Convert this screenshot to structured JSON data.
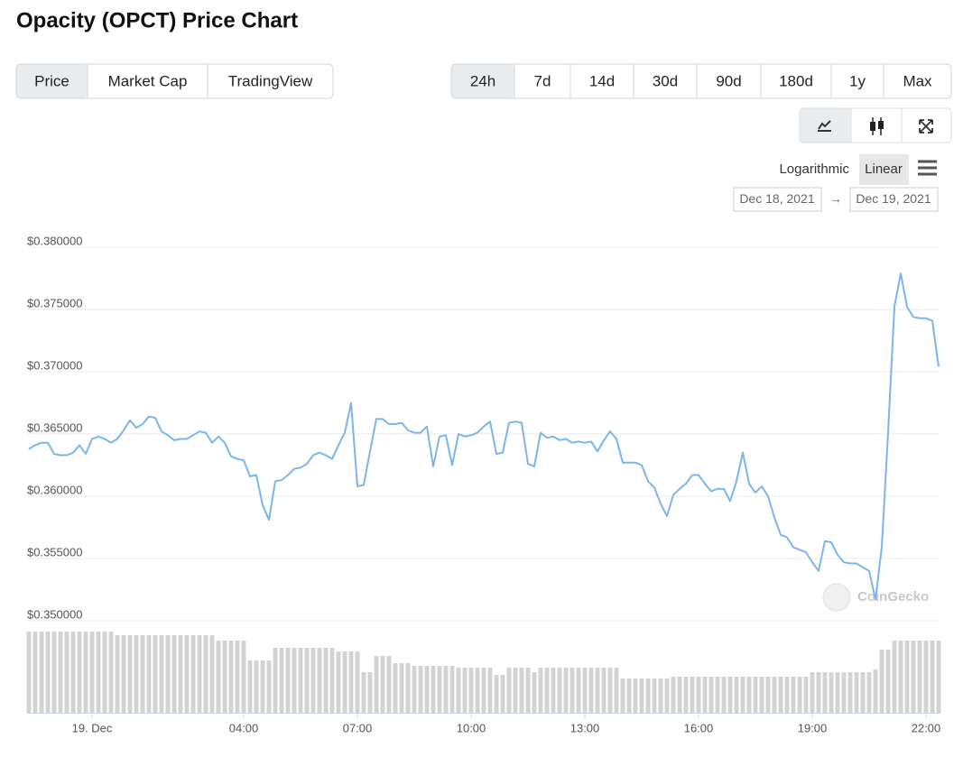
{
  "title": "Opacity (OPCT) Price Chart",
  "view_tabs": [
    "Price",
    "Market Cap",
    "TradingView"
  ],
  "range_tabs": [
    "24h",
    "7d",
    "14d",
    "30d",
    "90d",
    "180d",
    "1y",
    "Max"
  ],
  "scale_options": [
    "Logarithmic",
    "Linear"
  ],
  "date_range": {
    "from": "Dec 18, 2021",
    "separator": "→",
    "to": "Dec 19, 2021"
  },
  "watermark": "CoinGecko",
  "chart_data": {
    "type": "line",
    "color": "#7cb5ec",
    "volume_color": "#d3d3d3",
    "xlim": [
      -1.667,
      22.333
    ],
    "xticks": [
      {
        "value": 0,
        "label": "19. Dec"
      },
      {
        "value": 4,
        "label": "04:00"
      },
      {
        "value": 7,
        "label": "07:00"
      },
      {
        "value": 10,
        "label": "10:00"
      },
      {
        "value": 13,
        "label": "13:00"
      },
      {
        "value": 16,
        "label": "16:00"
      },
      {
        "value": 19,
        "label": "19:00"
      },
      {
        "value": 22,
        "label": "22:00"
      }
    ],
    "ylim": [
      0.35,
      0.38
    ],
    "yticks": [
      {
        "value": 0.38,
        "label": "$0.380000"
      },
      {
        "value": 0.375,
        "label": "$0.375000"
      },
      {
        "value": 0.37,
        "label": "$0.370000"
      },
      {
        "value": 0.365,
        "label": "$0.365000"
      },
      {
        "value": 0.36,
        "label": "$0.360000"
      },
      {
        "value": 0.355,
        "label": "$0.355000"
      },
      {
        "value": 0.35,
        "label": "$0.350000"
      }
    ],
    "grid": true,
    "x": [
      -1.667,
      -1.5,
      -1.333,
      -1.167,
      -1,
      -0.833,
      -0.667,
      -0.5,
      -0.333,
      -0.167,
      0,
      0.167,
      0.333,
      0.5,
      0.667,
      0.833,
      1,
      1.167,
      1.333,
      1.5,
      1.667,
      1.833,
      2,
      2.167,
      2.333,
      2.5,
      2.667,
      2.833,
      3,
      3.167,
      3.333,
      3.5,
      3.667,
      3.833,
      4,
      4.167,
      4.333,
      4.5,
      4.667,
      4.833,
      5,
      5.167,
      5.333,
      5.5,
      5.667,
      5.833,
      6,
      6.167,
      6.333,
      6.5,
      6.667,
      6.833,
      7,
      7.167,
      7.333,
      7.5,
      7.667,
      7.833,
      8,
      8.167,
      8.333,
      8.5,
      8.667,
      8.833,
      9,
      9.167,
      9.333,
      9.5,
      9.667,
      9.833,
      10,
      10.167,
      10.333,
      10.5,
      10.667,
      10.833,
      11,
      11.167,
      11.333,
      11.5,
      11.667,
      11.833,
      12,
      12.167,
      12.333,
      12.5,
      12.667,
      12.833,
      13,
      13.167,
      13.333,
      13.5,
      13.667,
      13.833,
      14,
      14.167,
      14.333,
      14.5,
      14.667,
      14.833,
      15,
      15.167,
      15.333,
      15.5,
      15.667,
      15.833,
      16,
      16.167,
      16.333,
      16.5,
      16.667,
      16.833,
      17,
      17.167,
      17.333,
      17.5,
      17.667,
      17.833,
      18,
      18.167,
      18.333,
      18.5,
      18.667,
      18.833,
      19,
      19.167,
      19.333,
      19.5,
      19.667,
      19.833,
      20,
      20.167,
      20.333,
      20.5,
      20.667,
      20.833,
      21,
      21.167,
      21.333,
      21.5,
      21.667,
      21.833,
      22,
      22.167,
      22.333
    ],
    "values": [
      0.3638,
      0.3641,
      0.3643,
      0.3643,
      0.3634,
      0.3633,
      0.3633,
      0.3635,
      0.3641,
      0.3634,
      0.3646,
      0.3648,
      0.3646,
      0.3643,
      0.3646,
      0.3653,
      0.3661,
      0.3655,
      0.3658,
      0.3664,
      0.3663,
      0.3652,
      0.3649,
      0.3645,
      0.3646,
      0.3646,
      0.3649,
      0.3652,
      0.3651,
      0.3643,
      0.3648,
      0.3643,
      0.3632,
      0.363,
      0.3629,
      0.3616,
      0.3617,
      0.3593,
      0.3581,
      0.3612,
      0.3613,
      0.3617,
      0.3622,
      0.3623,
      0.3626,
      0.3633,
      0.3635,
      0.3633,
      0.363,
      0.3641,
      0.3651,
      0.3675,
      0.3608,
      0.3609,
      0.3636,
      0.3662,
      0.3662,
      0.3658,
      0.3658,
      0.3659,
      0.3653,
      0.3651,
      0.3651,
      0.3656,
      0.3624,
      0.3648,
      0.3649,
      0.3625,
      0.365,
      0.3648,
      0.3649,
      0.3651,
      0.3656,
      0.366,
      0.3634,
      0.3635,
      0.3659,
      0.366,
      0.3659,
      0.3626,
      0.3624,
      0.3651,
      0.3647,
      0.3648,
      0.3645,
      0.3646,
      0.3643,
      0.3644,
      0.3643,
      0.3644,
      0.3636,
      0.3645,
      0.3652,
      0.3646,
      0.3627,
      0.3627,
      0.3627,
      0.3625,
      0.3612,
      0.3607,
      0.3594,
      0.3584,
      0.3601,
      0.3606,
      0.361,
      0.3617,
      0.3617,
      0.361,
      0.3604,
      0.3606,
      0.3606,
      0.3596,
      0.3612,
      0.3635,
      0.361,
      0.3603,
      0.3608,
      0.36,
      0.3583,
      0.3569,
      0.3567,
      0.3559,
      0.3557,
      0.3555,
      0.3547,
      0.354,
      0.3564,
      0.3563,
      0.3553,
      0.3547,
      0.3546,
      0.3546,
      0.3543,
      0.354,
      0.3517,
      0.3559,
      0.3651,
      0.3752,
      0.3779,
      0.3752,
      0.3744,
      0.3743,
      0.3743,
      0.3741,
      0.3704
    ],
    "volume": [
      90,
      90,
      90,
      90,
      90,
      90,
      90,
      90,
      90,
      90,
      90,
      90,
      90,
      90,
      86,
      86,
      86,
      86,
      86,
      86,
      86,
      86,
      86,
      86,
      86,
      86,
      86,
      86,
      86,
      86,
      80,
      80,
      80,
      80,
      80,
      58,
      58,
      58,
      58,
      72,
      72,
      72,
      72,
      72,
      72,
      72,
      72,
      72,
      72,
      68,
      68,
      68,
      68,
      45,
      45,
      63,
      63,
      63,
      55,
      55,
      55,
      52,
      52,
      52,
      52,
      52,
      52,
      52,
      50,
      50,
      50,
      50,
      50,
      50,
      42,
      42,
      50,
      50,
      50,
      50,
      45,
      50,
      50,
      50,
      50,
      50,
      50,
      50,
      50,
      50,
      50,
      50,
      50,
      50,
      38,
      38,
      38,
      38,
      38,
      38,
      38,
      38,
      40,
      40,
      40,
      40,
      40,
      40,
      40,
      40,
      40,
      40,
      40,
      40,
      40,
      40,
      40,
      40,
      40,
      40,
      40,
      40,
      40,
      40,
      45,
      45,
      45,
      45,
      45,
      45,
      45,
      45,
      45,
      45,
      48,
      70,
      70,
      80,
      80,
      80,
      80,
      80,
      80,
      80,
      80
    ]
  }
}
